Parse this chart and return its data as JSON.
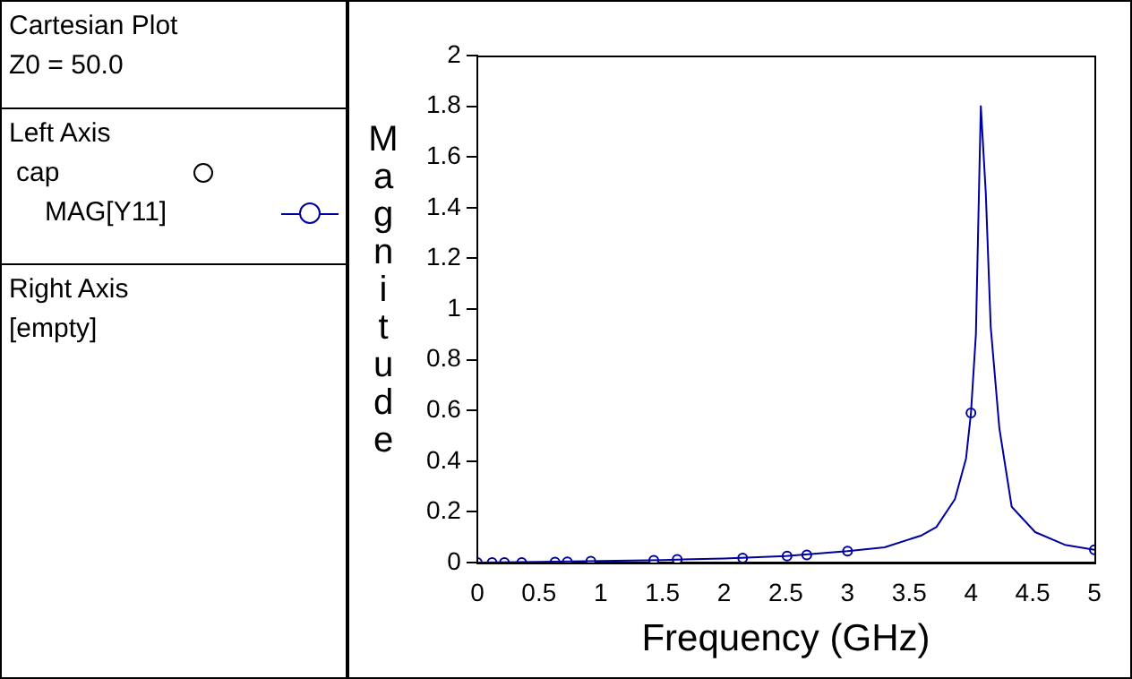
{
  "chart_data": {
    "type": "line",
    "title": "Cartesian Plot",
    "subtitle": "Z0 = 50.0",
    "legend_title": "Left Axis",
    "annotations": [
      "cap",
      "Right Axis",
      "[empty]"
    ],
    "xlabel": "Frequency (GHz)",
    "ylabel": "Magnitude",
    "xlim": [
      0,
      5
    ],
    "xticks": [
      0,
      0.5,
      1,
      1.5,
      2,
      2.5,
      3,
      3.5,
      4,
      4.5,
      5
    ],
    "ylim": [
      0,
      2
    ],
    "yticks": [
      0,
      0.2,
      0.4,
      0.6,
      0.8,
      1,
      1.2,
      1.4,
      1.6,
      1.8,
      2
    ],
    "grid": false,
    "legend": "left",
    "series": [
      {
        "name": "MAG[Y11]",
        "type": "line",
        "color": "#0000a0",
        "marker": "none",
        "x": [
          0,
          0.5,
          1,
          1.5,
          2,
          2.5,
          3,
          3.3,
          3.6,
          3.72,
          3.87,
          3.96,
          4,
          4.04,
          4.07,
          4.08,
          4.12,
          4.16,
          4.23,
          4.33,
          4.52,
          4.76,
          5
        ],
        "values": [
          0,
          0.003,
          0.006,
          0.01,
          0.016,
          0.026,
          0.045,
          0.06,
          0.107,
          0.14,
          0.25,
          0.41,
          0.59,
          0.9,
          1.58,
          1.8,
          1.46,
          0.93,
          0.53,
          0.22,
          0.12,
          0.07,
          0.05
        ]
      },
      {
        "type": "scatter",
        "color": "#0000a0",
        "marker": "circle",
        "x": [
          0,
          0.12,
          0.22,
          0.36,
          0.63,
          0.73,
          0.92,
          1.43,
          1.62,
          2.15,
          2.51,
          2.67,
          3,
          4,
          5
        ],
        "values": [
          0,
          0,
          0,
          0,
          0.002,
          0.003,
          0.005,
          0.009,
          0.012,
          0.018,
          0.026,
          0.03,
          0.045,
          0.59,
          0.05
        ]
      }
    ]
  }
}
